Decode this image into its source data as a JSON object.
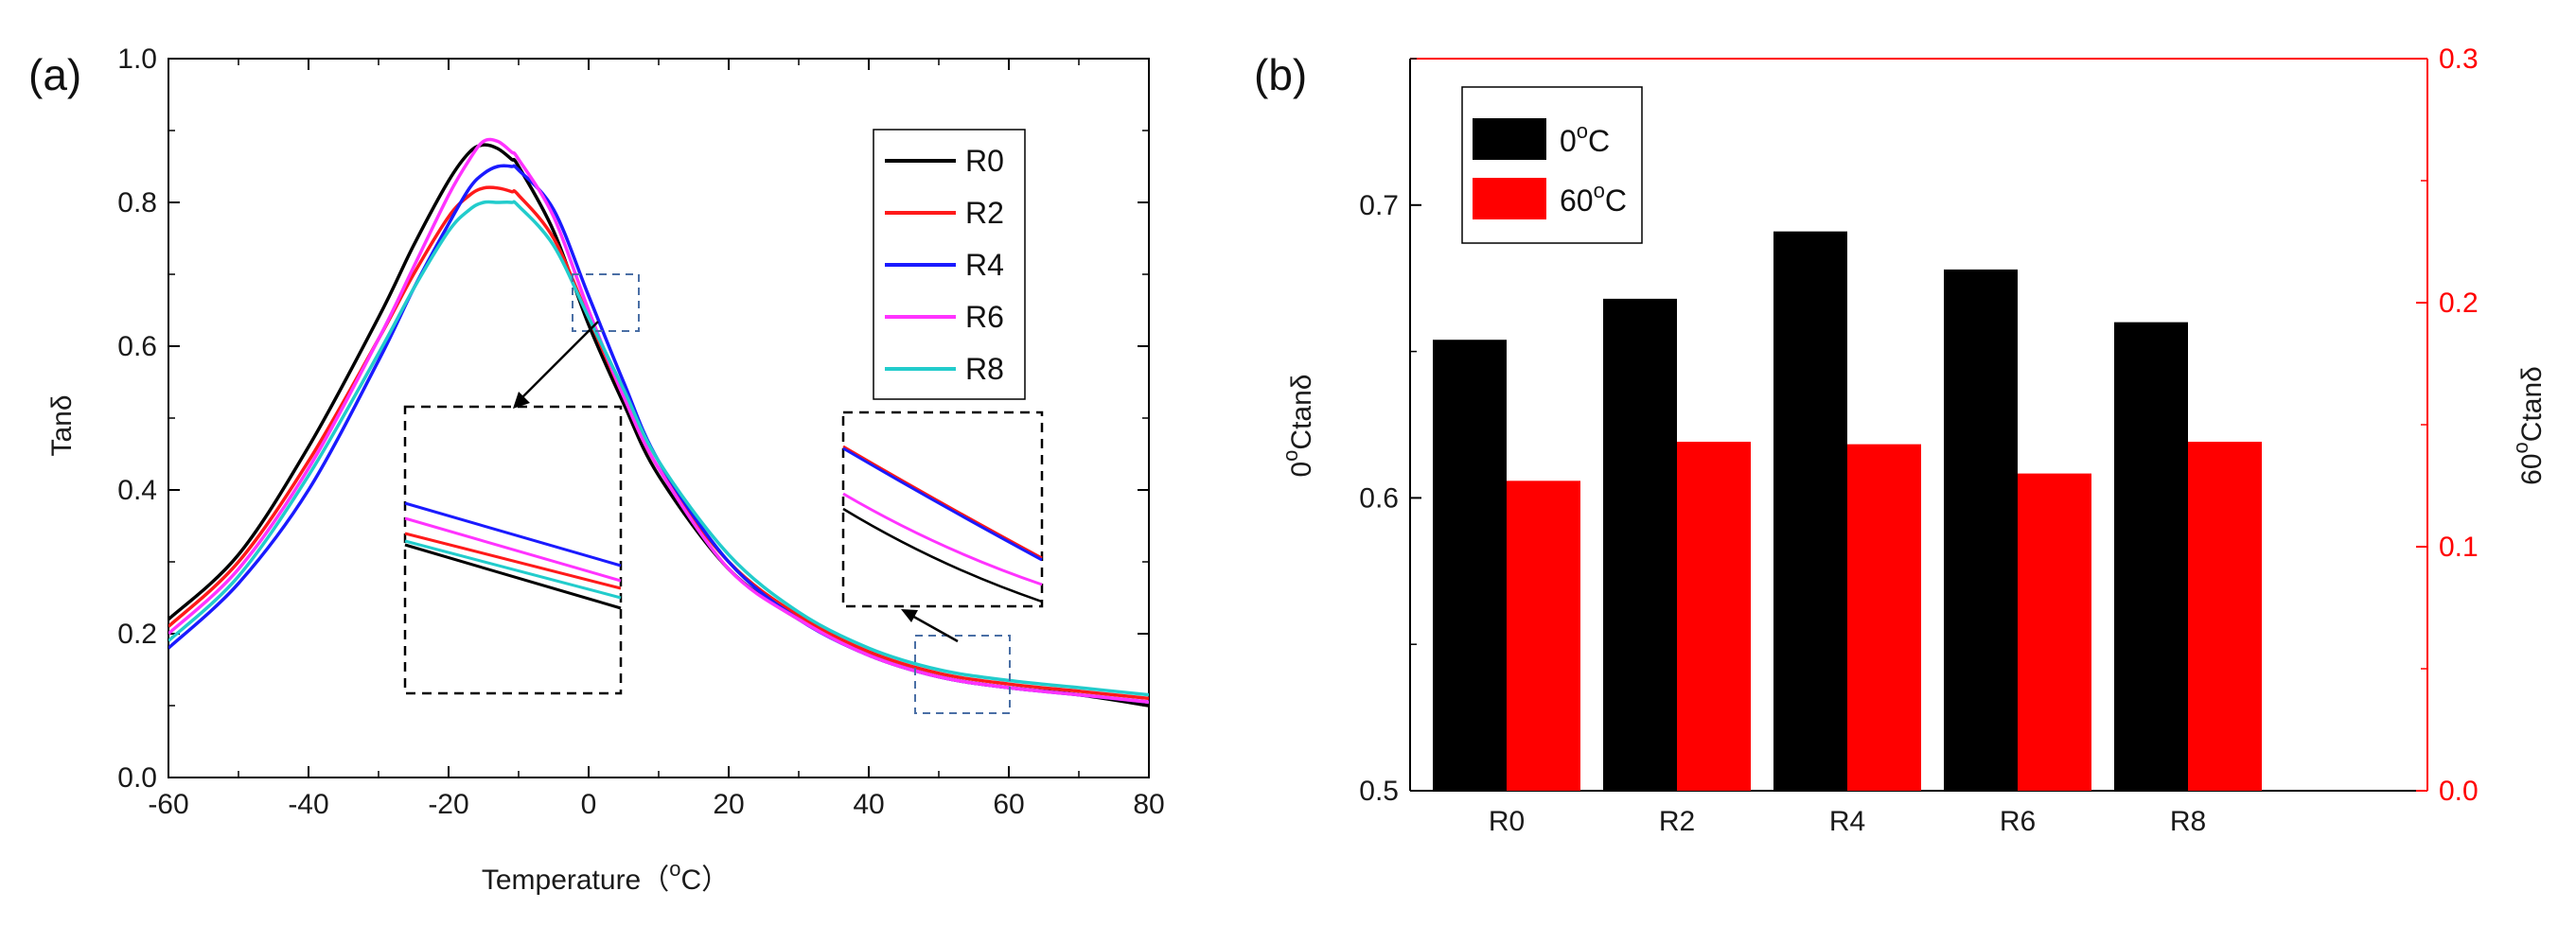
{
  "chart_data": [
    {
      "panel": "(a)",
      "type": "line",
      "xlabel": "Temperature",
      "xlabel_unit": "(°C)",
      "xlabel_parts": [
        "Temperature（",
        "o",
        "C）"
      ],
      "ylabel": "Tanδ",
      "xlim": [
        -60,
        80
      ],
      "ylim": [
        0.0,
        1.0
      ],
      "xticks": [
        -60,
        -40,
        -20,
        0,
        20,
        40,
        60,
        80
      ],
      "yticks": [
        "0.0",
        "0.2",
        "0.4",
        "0.6",
        "0.8",
        "1.0"
      ],
      "legend_position": "top-right",
      "x": [
        -60,
        -50,
        -40,
        -30,
        -25,
        -20,
        -17,
        -15,
        -13,
        -11,
        -10,
        -5,
        0,
        5,
        10,
        20,
        30,
        40,
        50,
        60,
        70,
        80
      ],
      "series": [
        {
          "name": "R0",
          "color": "#000000",
          "peak_x": -14.5,
          "peak_y": 0.88,
          "values": [
            0.22,
            0.31,
            0.46,
            0.64,
            0.74,
            0.83,
            0.87,
            0.88,
            0.875,
            0.86,
            0.85,
            0.76,
            0.63,
            0.52,
            0.42,
            0.29,
            0.22,
            0.17,
            0.14,
            0.125,
            0.115,
            0.1
          ]
        },
        {
          "name": "R2",
          "color": "#ff1a1a",
          "peak_x": -13,
          "peak_y": 0.82,
          "values": [
            0.21,
            0.3,
            0.44,
            0.61,
            0.7,
            0.78,
            0.81,
            0.82,
            0.82,
            0.815,
            0.81,
            0.75,
            0.64,
            0.53,
            0.43,
            0.3,
            0.225,
            0.175,
            0.145,
            0.13,
            0.12,
            0.11
          ]
        },
        {
          "name": "R4",
          "color": "#1a1aff",
          "peak_x": -12,
          "peak_y": 0.85,
          "values": [
            0.18,
            0.27,
            0.4,
            0.58,
            0.68,
            0.77,
            0.82,
            0.84,
            0.85,
            0.85,
            0.845,
            0.79,
            0.67,
            0.55,
            0.44,
            0.3,
            0.22,
            0.17,
            0.14,
            0.125,
            0.115,
            0.105
          ]
        },
        {
          "name": "R6",
          "color": "#ff33ff",
          "peak_x": -14,
          "peak_y": 0.89,
          "values": [
            0.2,
            0.29,
            0.43,
            0.61,
            0.71,
            0.81,
            0.86,
            0.885,
            0.885,
            0.87,
            0.86,
            0.78,
            0.65,
            0.53,
            0.43,
            0.29,
            0.22,
            0.17,
            0.14,
            0.125,
            0.115,
            0.105
          ]
        },
        {
          "name": "R8",
          "color": "#22cccc",
          "peak_x": -12,
          "peak_y": 0.8,
          "values": [
            0.19,
            0.28,
            0.42,
            0.59,
            0.68,
            0.76,
            0.79,
            0.8,
            0.8,
            0.8,
            0.795,
            0.74,
            0.64,
            0.54,
            0.44,
            0.31,
            0.23,
            0.18,
            0.15,
            0.135,
            0.125,
            0.115
          ]
        }
      ]
    },
    {
      "panel": "(b)",
      "type": "bar",
      "categories": [
        "R0",
        "R2",
        "R4",
        "R6",
        "R8"
      ],
      "ylabel_left": "0°C tanδ",
      "ylabel_left_parts": [
        "0",
        "o",
        "Ctanδ"
      ],
      "ylabel_right": "60°C tanδ",
      "ylabel_right_parts": [
        "60",
        "o",
        "Ctanδ"
      ],
      "ylim_left": [
        0.5,
        0.75
      ],
      "ylim_right": [
        0.0,
        0.3
      ],
      "yticks_left": [
        "0.5",
        "0.6",
        "0.7"
      ],
      "yticks_right": [
        "0.0",
        "0.1",
        "0.2",
        "0.3"
      ],
      "legend_position": "top-left",
      "series": [
        {
          "name": "0°C",
          "name_parts": [
            "0",
            "o",
            "C"
          ],
          "axis": "left",
          "color": "#000000",
          "values": [
            0.654,
            0.668,
            0.691,
            0.678,
            0.66
          ]
        },
        {
          "name": "60°C",
          "name_parts": [
            "60",
            "o",
            "C"
          ],
          "axis": "right",
          "color": "#ff0000",
          "values": [
            0.127,
            0.143,
            0.142,
            0.13,
            0.143
          ]
        }
      ],
      "right_axis_color": "#ff0000"
    }
  ]
}
